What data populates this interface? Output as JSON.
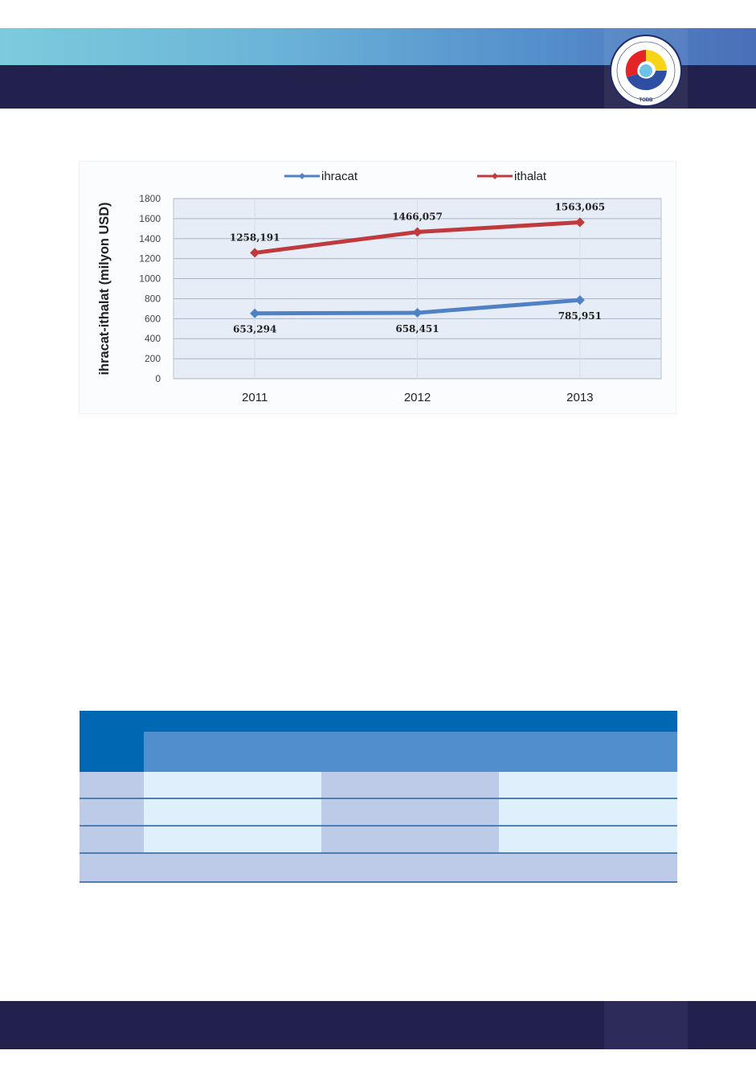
{
  "header": {
    "logo": {
      "name": "tobb-logo",
      "ring_text": "TÜRKİYE ODALAR VE BORSALAR BİRLİĞİ",
      "abbr": "TOBB"
    },
    "colors": {
      "gradient_start": "#7ccbdc",
      "gradient_end": "#4a6fb8",
      "navy": "#22214d"
    }
  },
  "chart_data": {
    "type": "line",
    "categories": [
      "2011",
      "2012",
      "2013"
    ],
    "series": [
      {
        "name": "ihracat",
        "values": [
          653.294,
          658.451,
          785.951
        ],
        "labels": [
          "653,294",
          "658,451",
          "785,951"
        ],
        "color": "#4f81c7"
      },
      {
        "name": "ithalat",
        "values": [
          1258.191,
          1466.057,
          1563.065
        ],
        "labels": [
          "1258,191",
          "1466,057",
          "1563,065"
        ],
        "color": "#c0393c"
      }
    ],
    "ylabel": "ihracat-ithalat (milyon USD)",
    "ylim": [
      0,
      1800
    ],
    "yticks": [
      0,
      200,
      400,
      600,
      800,
      1000,
      1200,
      1400,
      1600,
      1800
    ],
    "grid": true,
    "legend": "top"
  },
  "table": {
    "colors": {
      "header_dark": "#0068b3",
      "header_light": "#508ecd",
      "cell_light": "#dff0fc",
      "cell_dark": "#bdcbe9"
    },
    "rows": 4
  }
}
